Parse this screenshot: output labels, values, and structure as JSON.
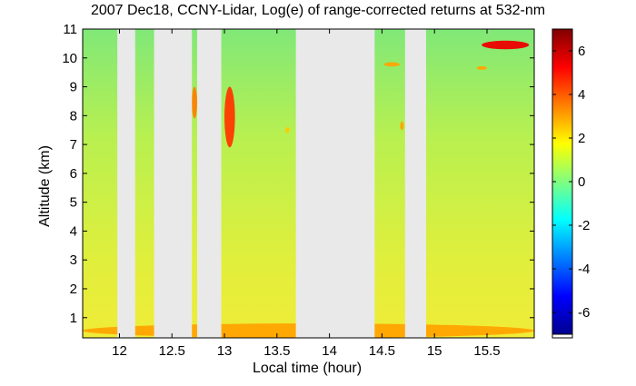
{
  "chart_data": {
    "type": "heatmap",
    "title": "2007 Dec18, CCNY-Lidar, Log(e) of range-corrected returns at 532-nm",
    "xlabel": "Local time (hour)",
    "ylabel": "Altitude (km)",
    "xlim": [
      11.65,
      15.95
    ],
    "ylim": [
      0.3,
      11.0
    ],
    "xticks": [
      12,
      12.5,
      13,
      13.5,
      14,
      14.5,
      15,
      15.5
    ],
    "xtick_labels": [
      "12",
      "12.5",
      "13",
      "13.5",
      "14",
      "14.5",
      "15",
      "15.5"
    ],
    "yticks": [
      1,
      2,
      3,
      4,
      5,
      6,
      7,
      8,
      9,
      10,
      11
    ],
    "ytick_labels": [
      "1",
      "2",
      "3",
      "4",
      "5",
      "6",
      "7",
      "8",
      "9",
      "10",
      "11"
    ],
    "colorbar": {
      "range": [
        -7,
        7
      ],
      "ticks": [
        -6,
        -4,
        -2,
        0,
        2,
        4,
        6
      ],
      "tick_labels": [
        "-6",
        "-4",
        "-2",
        "0",
        "2",
        "4",
        "6"
      ],
      "colormap": "jet"
    },
    "data_gaps_hours": [
      [
        11.98,
        12.15
      ],
      [
        12.33,
        12.69
      ],
      [
        12.74,
        12.97
      ],
      [
        13.68,
        14.43
      ],
      [
        14.72,
        14.92
      ]
    ],
    "features": [
      {
        "label": "cloud",
        "x": [
          15.45,
          15.9
        ],
        "y": [
          10.3,
          10.6
        ],
        "value": 5.5
      },
      {
        "label": "cloud",
        "x": [
          15.4,
          15.5
        ],
        "y": [
          9.6,
          9.7
        ],
        "value": 3.0
      },
      {
        "label": "cloud",
        "x": [
          14.52,
          14.67
        ],
        "y": [
          9.7,
          9.85
        ],
        "value": 3.0
      },
      {
        "label": "cloud",
        "x": [
          12.69,
          12.74
        ],
        "y": [
          7.9,
          9.0
        ],
        "value": 3.5
      },
      {
        "label": "cloud",
        "x": [
          13.0,
          13.1
        ],
        "y": [
          6.9,
          9.0
        ],
        "value": 4.5
      },
      {
        "label": "cloud",
        "x": [
          14.68,
          14.7
        ],
        "y": [
          7.5,
          7.8
        ],
        "value": 3.0
      },
      {
        "label": "cloud",
        "x": [
          13.58,
          13.62
        ],
        "y": [
          7.4,
          7.6
        ],
        "value": 2.5
      },
      {
        "label": "boundary layer",
        "x": [
          11.65,
          15.95
        ],
        "y": [
          0.3,
          0.8
        ],
        "value": 3.0
      }
    ],
    "background_value_profile": [
      {
        "altitude": 0.8,
        "value": 2.5
      },
      {
        "altitude": 5.0,
        "value": 1.3
      },
      {
        "altitude": 11.0,
        "value": 0.3
      }
    ]
  }
}
